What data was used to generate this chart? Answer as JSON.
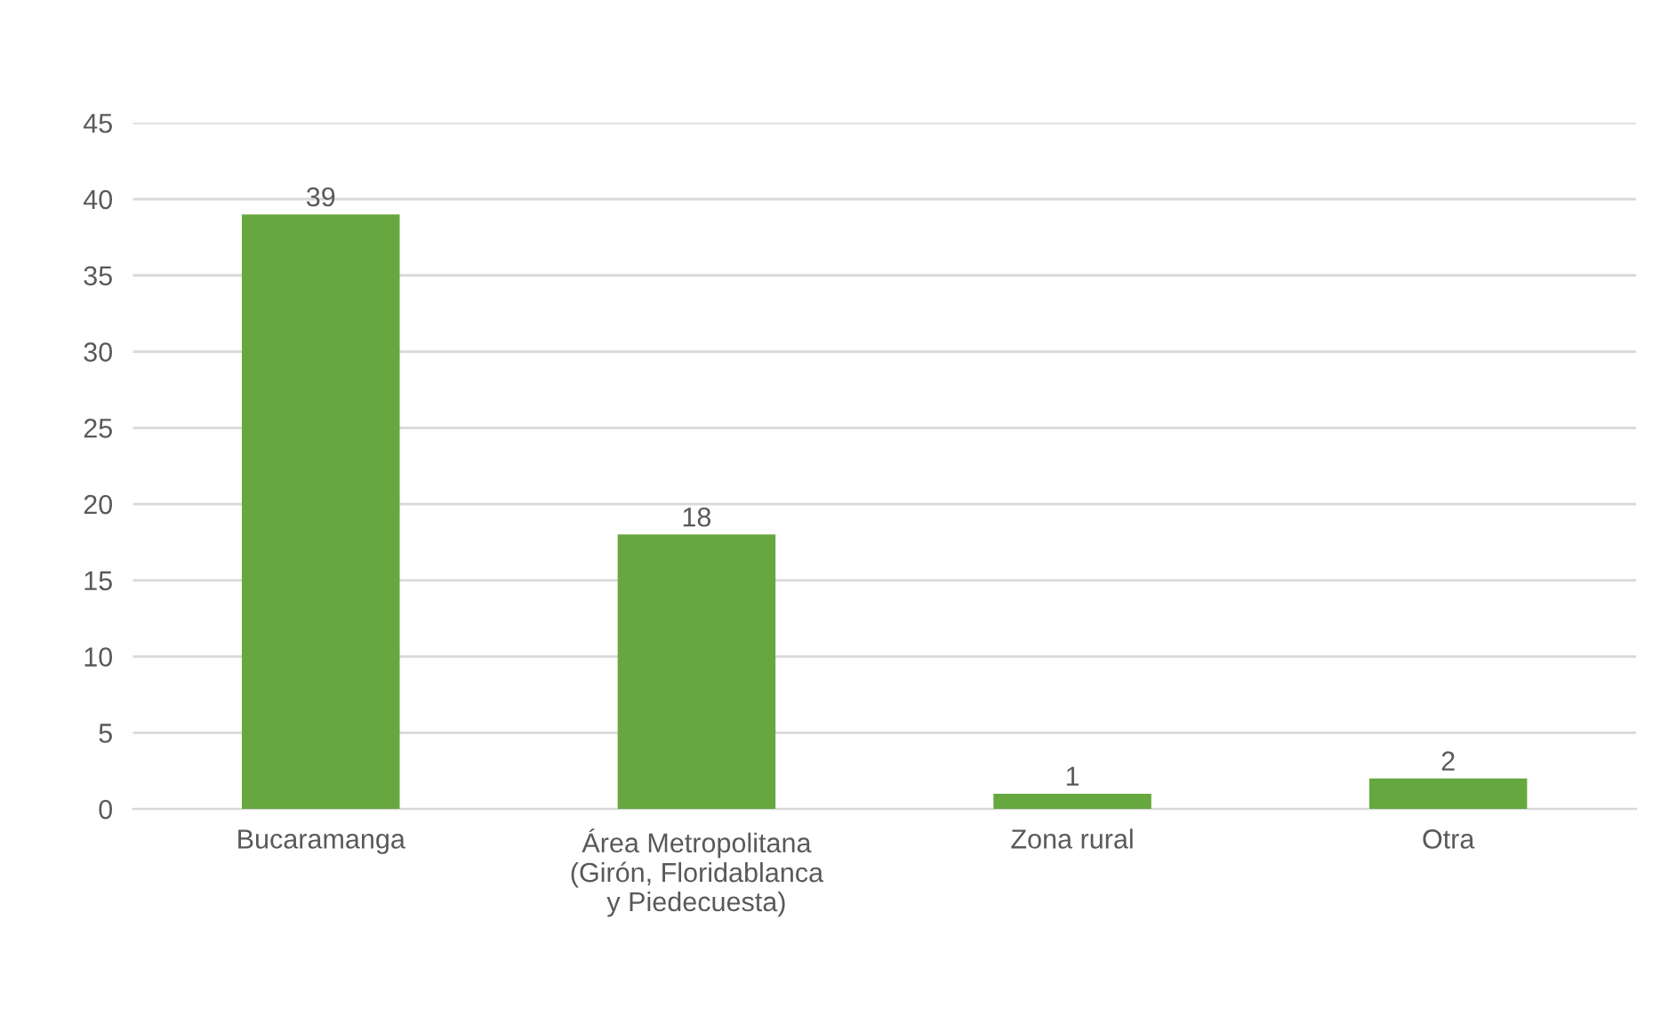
{
  "chart_data": {
    "type": "bar",
    "categories": [
      "Bucaramanga",
      "Área Metropolitana\n(Girón, Floridablanca\ny Piedecuesta)",
      "Zona rural",
      "Otra"
    ],
    "values": [
      39,
      18,
      1,
      2
    ],
    "color": "#66a83f",
    "ylim": [
      0,
      45
    ],
    "yticks": [
      0,
      5,
      10,
      15,
      20,
      25,
      30,
      35,
      40,
      45
    ],
    "grid": "y",
    "data_labels": true
  }
}
